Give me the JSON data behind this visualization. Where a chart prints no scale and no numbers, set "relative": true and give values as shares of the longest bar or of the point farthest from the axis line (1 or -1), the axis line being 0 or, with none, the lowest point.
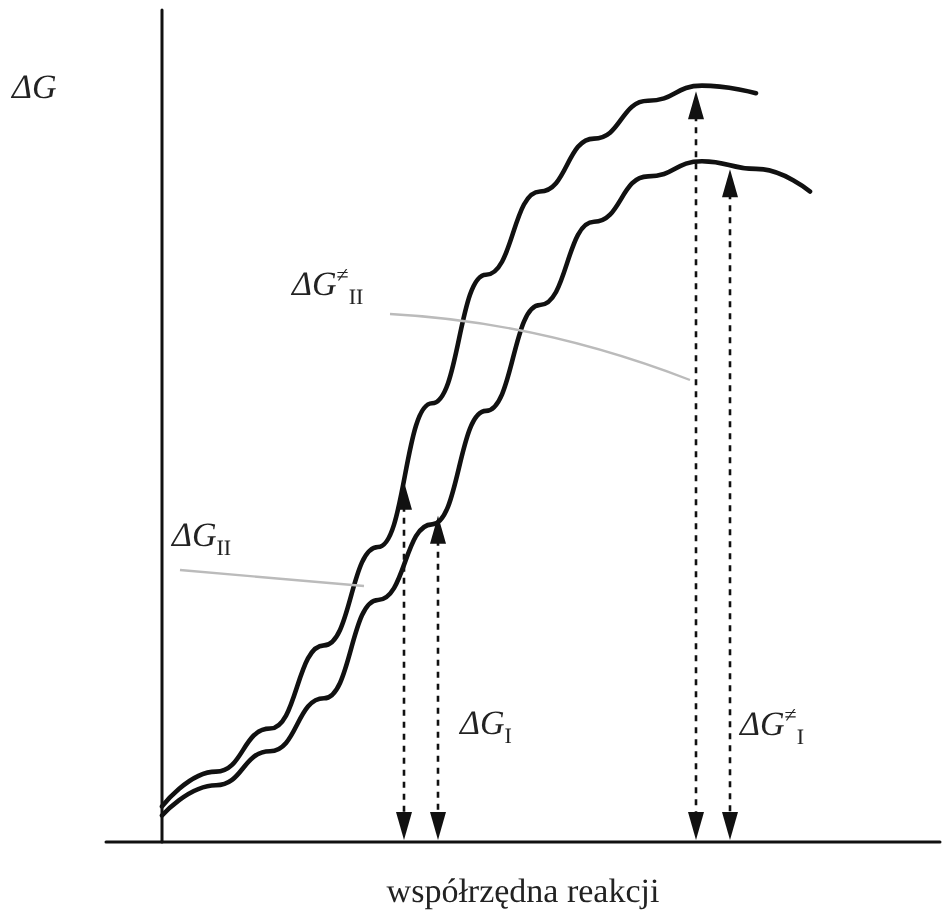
{
  "chart_data": {
    "type": "line",
    "relative": true,
    "xlabel": "współrzędna reakcji",
    "ylabel": "ΔG",
    "marker": "none",
    "line_style": "solid",
    "categories": [
      null,
      null,
      null,
      null,
      null,
      null,
      null,
      null,
      null,
      null,
      null,
      null,
      null
    ],
    "series": [
      {
        "color": "#111111",
        "values": [
          0.047,
          0.093,
          0.15,
          0.26,
          0.39,
          0.58,
          0.75,
          0.86,
          0.93,
          0.98,
          1,
          0.99,
          null
        ]
      },
      {
        "color": "#111111",
        "values": [
          0.035,
          0.075,
          0.12,
          0.19,
          0.32,
          0.42,
          0.57,
          0.71,
          0.82,
          0.88,
          0.9,
          0.89,
          0.86
        ]
      }
    ],
    "annotations": [
      "ΔG$^{≠}$$_{II}$",
      "ΔG$_{II}$",
      "ΔG$_{I}$",
      "ΔG$^{≠}$$_{I}$"
    ]
  }
}
